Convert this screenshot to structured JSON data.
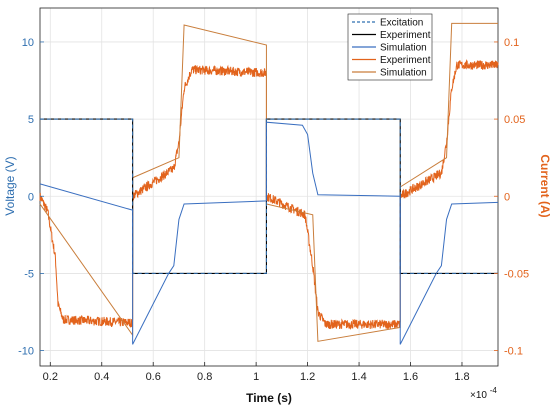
{
  "chart_data": {
    "type": "line",
    "xlabel": "Time (s)",
    "ylabel_left": "Voltage (V)",
    "ylabel_right": "Current (A)",
    "x_exponent_label": "×10",
    "x_exponent_power": "-4",
    "x_scale": 0.0001,
    "xlim": [
      0.16,
      1.94
    ],
    "ylim_left": [
      -11,
      12.2
    ],
    "ylim_right": [
      -0.11,
      0.122
    ],
    "grid": true,
    "legend_position": "top-right",
    "x_ticks": [
      0.2,
      0.4,
      0.6,
      0.8,
      1,
      1.2,
      1.4,
      1.6,
      1.8
    ],
    "x_tick_labels": [
      "0.2",
      "0.4",
      "0.6",
      "0.8",
      "1",
      "1.2",
      "1.4",
      "1.6",
      "1.8"
    ],
    "y_left_ticks": [
      -10,
      -5,
      0,
      5,
      10
    ],
    "y_left_tick_labels": [
      "-10",
      "-5",
      "0",
      "5",
      "10"
    ],
    "y_right_ticks": [
      -0.1,
      -0.05,
      0,
      0.05,
      0.1
    ],
    "y_right_tick_labels": [
      "-0.1",
      "-0.05",
      "0",
      "0.05",
      "0.1"
    ],
    "legend": [
      "Excitation",
      "Experiment",
      "Simulation",
      "Experiment",
      "Simulation"
    ],
    "series": [
      {
        "name": "Excitation",
        "axis": "left",
        "color": "#2f6fb0",
        "style": "dashed",
        "x": [
          0.16,
          0.52,
          0.52,
          1.04,
          1.04,
          1.56,
          1.56,
          1.94
        ],
        "y": [
          5,
          5,
          -5,
          -5,
          5,
          5,
          -5,
          -5
        ]
      },
      {
        "name": "Experiment",
        "axis": "left",
        "color": "#000000",
        "style": "solid",
        "x": [
          0.16,
          0.52,
          0.52,
          1.04,
          1.04,
          1.56,
          1.56,
          1.94
        ],
        "y": [
          5,
          5,
          -5,
          -5,
          5,
          5,
          -5,
          -5
        ]
      },
      {
        "name": "Simulation",
        "axis": "left",
        "color": "#3a6fc0",
        "style": "solid",
        "x": [
          0.16,
          0.52,
          0.52,
          0.66,
          0.68,
          0.7,
          0.72,
          1.04,
          1.04,
          1.18,
          1.2,
          1.22,
          1.24,
          1.56,
          1.56,
          1.7,
          1.72,
          1.74,
          1.76,
          1.94
        ],
        "y": [
          0.8,
          -0.9,
          -9.6,
          -5.0,
          -4.5,
          -1.5,
          -0.5,
          -0.3,
          4.8,
          4.6,
          4.0,
          1.5,
          0.1,
          0.0,
          -9.6,
          -5.0,
          -4.5,
          -1.5,
          -0.5,
          -0.4
        ]
      },
      {
        "name": "Experiment",
        "axis": "right",
        "color": "#e2631c",
        "style": "solid",
        "noisy": true,
        "x": [
          0.16,
          0.19,
          0.22,
          0.23,
          0.25,
          0.52,
          0.52,
          0.68,
          0.7,
          0.72,
          0.75,
          1.04,
          1.04,
          1.19,
          1.22,
          1.24,
          1.27,
          1.56,
          1.56,
          1.72,
          1.74,
          1.76,
          1.78,
          1.94
        ],
        "y": [
          0.0,
          -0.01,
          -0.04,
          -0.07,
          -0.08,
          -0.082,
          0.0,
          0.018,
          0.035,
          0.07,
          0.082,
          0.08,
          0.0,
          -0.012,
          -0.045,
          -0.075,
          -0.083,
          -0.083,
          0.0,
          0.015,
          0.035,
          0.07,
          0.085,
          0.085
        ]
      },
      {
        "name": "Simulation",
        "axis": "right",
        "color": "#c97e3c",
        "style": "solid",
        "x": [
          0.16,
          0.52,
          0.52,
          0.7,
          0.72,
          1.04,
          1.04,
          1.22,
          1.24,
          1.56,
          1.56,
          1.74,
          1.76,
          1.94
        ],
        "y": [
          -0.005,
          -0.09,
          0.012,
          0.025,
          0.111,
          0.098,
          -0.005,
          -0.012,
          -0.094,
          -0.085,
          0.006,
          0.025,
          0.112,
          0.112
        ]
      }
    ]
  }
}
